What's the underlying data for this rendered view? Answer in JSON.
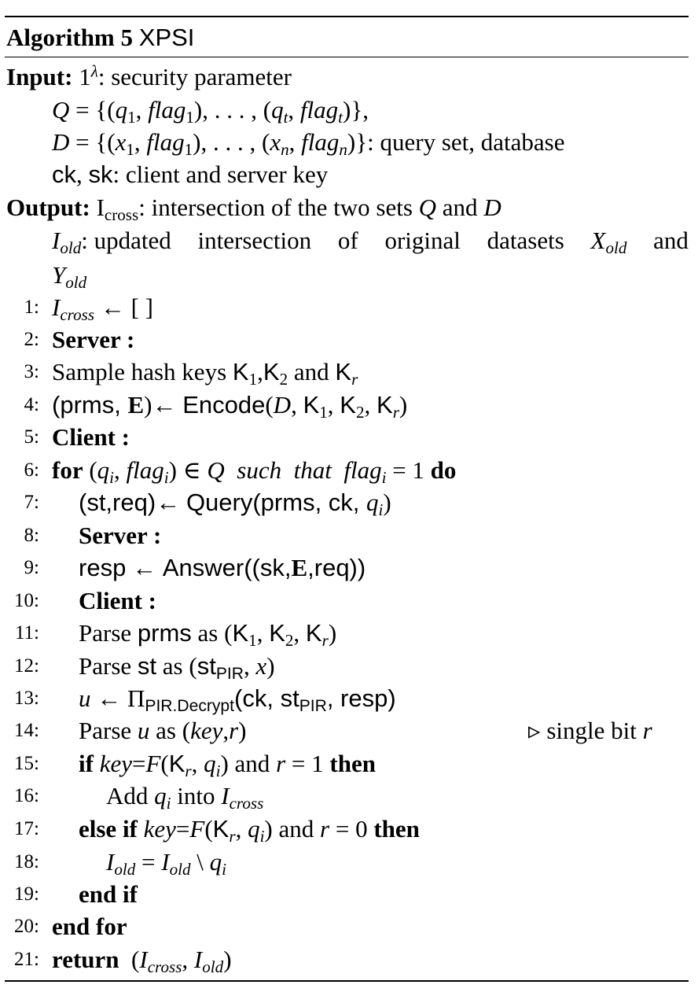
{
  "algorithm": {
    "label": "Algorithm 5",
    "name": "XPSI"
  },
  "input": {
    "label": "Input:",
    "security_param_text": ": security parameter",
    "query_desc": "query set, database",
    "keys_text": "client and server key"
  },
  "output": {
    "label": "Output:",
    "cross_text": ": intersection of the two sets",
    "old_text_1": ": updated intersection of original datasets",
    "old_text_and": "and"
  },
  "lines": [
    {
      "num": "1:"
    },
    {
      "num": "2:",
      "text": "Server :"
    },
    {
      "num": "3:",
      "text": "Sample hash keys"
    },
    {
      "num": "4:"
    },
    {
      "num": "5:",
      "text": "Client :"
    },
    {
      "num": "6:"
    },
    {
      "num": "7:"
    },
    {
      "num": "8:",
      "text": "Server :"
    },
    {
      "num": "9:"
    },
    {
      "num": "10:",
      "text": "Client :"
    },
    {
      "num": "11:"
    },
    {
      "num": "12:"
    },
    {
      "num": "13:"
    },
    {
      "num": "14:"
    },
    {
      "num": "15:"
    },
    {
      "num": "16:"
    },
    {
      "num": "17:"
    },
    {
      "num": "18:"
    },
    {
      "num": "19:",
      "text": "end if"
    },
    {
      "num": "20:",
      "text": "end for"
    },
    {
      "num": "21:"
    }
  ],
  "keywords": {
    "for": "for",
    "do": "do",
    "if": "if",
    "then": "then",
    "else_if": "else if",
    "return": "return",
    "and": "and",
    "parse": "Parse",
    "as": "as",
    "add": "Add",
    "into": "into"
  },
  "functions": {
    "encode": "Encode",
    "query": "Query",
    "answer": "Answer",
    "decrypt": "PIR.Decrypt"
  },
  "comment": "single bit"
}
